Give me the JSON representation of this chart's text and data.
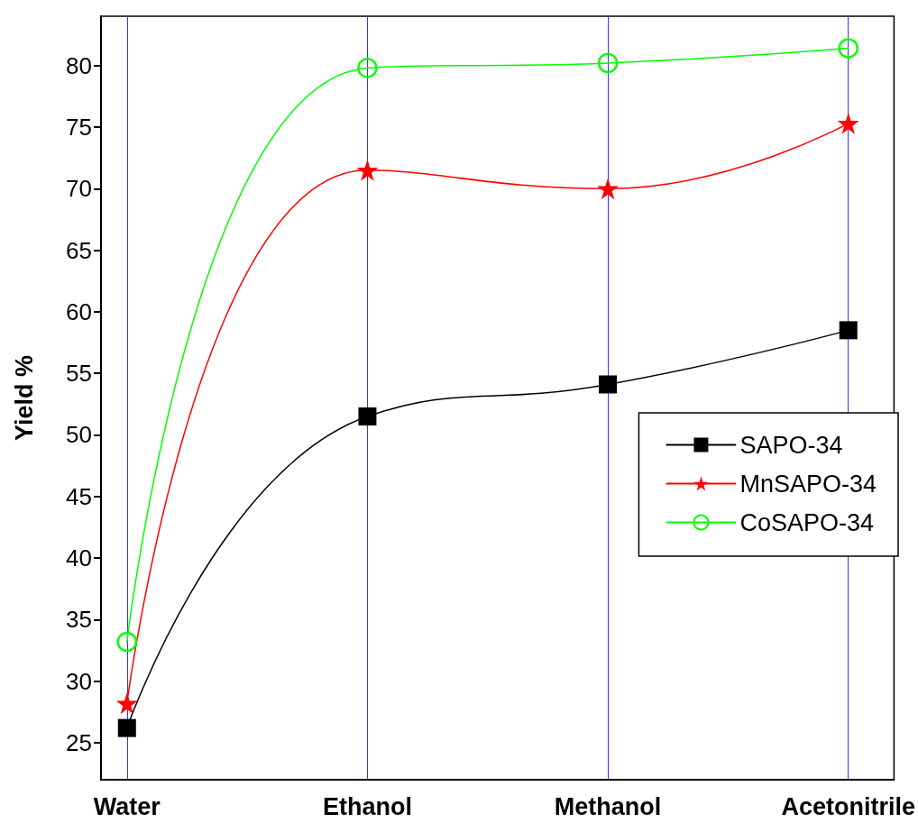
{
  "chart_data": {
    "type": "line",
    "ylabel": "Yield %",
    "categories": [
      "Water",
      "Ethanol",
      "Methanol",
      "Acetonitrile"
    ],
    "series": [
      {
        "name": "SAPO-34",
        "color": "#000000",
        "marker": "square",
        "values": [
          26.2,
          51.5,
          54.1,
          58.5
        ]
      },
      {
        "name": "MnSAPO-34",
        "color": "#ff0000",
        "marker": "star",
        "values": [
          28.2,
          71.5,
          70.0,
          75.3
        ]
      },
      {
        "name": "CoSAPO-34",
        "color": "#00ff00",
        "marker": "circle",
        "values": [
          33.2,
          79.8,
          80.2,
          81.4
        ]
      }
    ],
    "ylim": [
      22,
      84
    ],
    "yticks": [
      25,
      30,
      35,
      40,
      45,
      50,
      55,
      60,
      65,
      70,
      75,
      80
    ],
    "grid": "x",
    "legend": "right",
    "line_style": "solid"
  }
}
